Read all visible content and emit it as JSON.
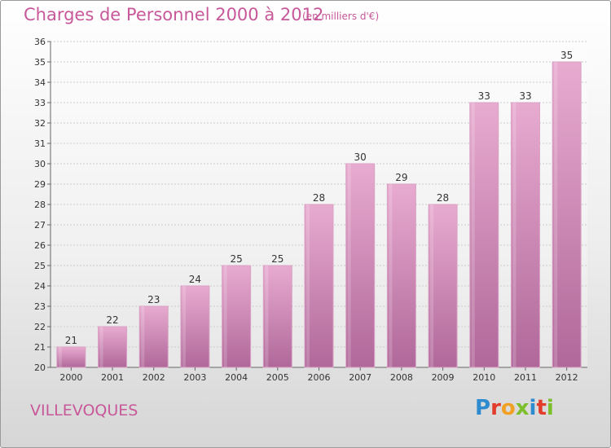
{
  "header": {
    "title": "Charges de Personnel 2000 à 2012",
    "subtitle": "(en milliers d'€)"
  },
  "footer": {
    "city": "VILLEVOQUES",
    "logo": "Proxiti",
    "logo_colors": [
      "#2e8bd0",
      "#e23d2b",
      "#f0a022",
      "#7cbf2a",
      "#2e8bd0",
      "#e23d2b",
      "#7cbf2a"
    ]
  },
  "colors": {
    "bar_top": "#e8abd0",
    "bar_bottom": "#b0689a",
    "text": "#333333",
    "accent": "#c7589a"
  },
  "chart_data": {
    "type": "bar",
    "categories": [
      "2000",
      "2001",
      "2002",
      "2003",
      "2004",
      "2005",
      "2006",
      "2007",
      "2008",
      "2009",
      "2010",
      "2011",
      "2012"
    ],
    "values": [
      21,
      22,
      23,
      24,
      25,
      25,
      28,
      30,
      29,
      28,
      33,
      33,
      35
    ],
    "ylim": [
      20,
      36
    ],
    "yticks": [
      20,
      21,
      22,
      23,
      24,
      25,
      26,
      27,
      28,
      29,
      30,
      31,
      32,
      33,
      34,
      35,
      36
    ],
    "grid": true,
    "data_labels": true
  }
}
